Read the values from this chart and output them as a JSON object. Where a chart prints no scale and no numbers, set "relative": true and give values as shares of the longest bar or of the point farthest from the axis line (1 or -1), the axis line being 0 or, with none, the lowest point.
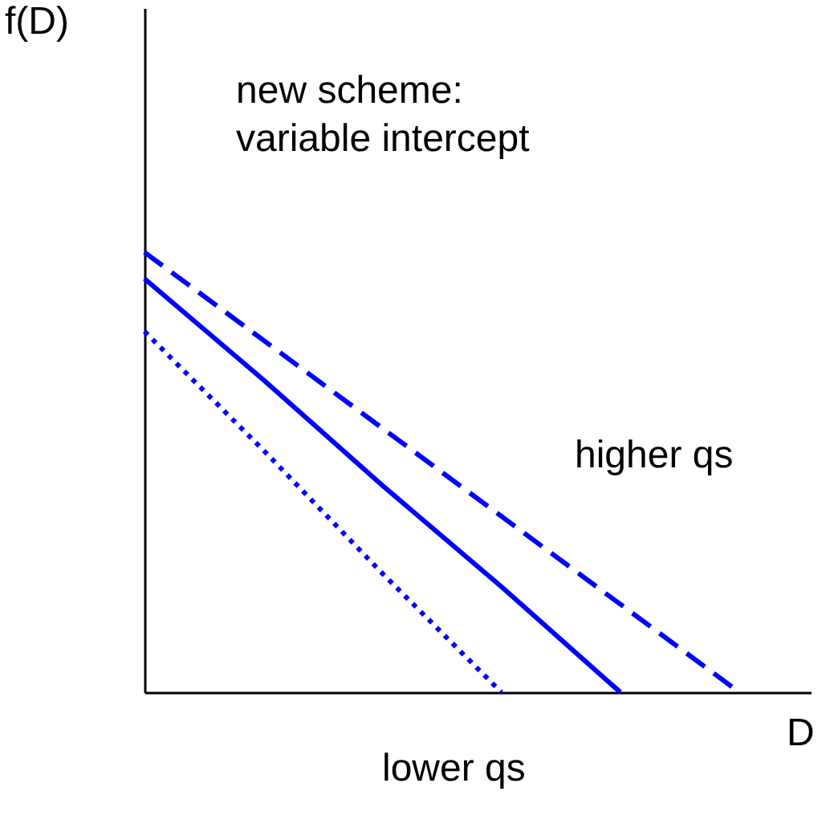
{
  "chart_data": {
    "type": "line",
    "relative": true,
    "xlabel": "D",
    "grid": false,
    "annotations": [
      "f(D)",
      "new scheme:\nvariable intercept",
      "higher qs",
      "lower qs"
    ],
    "categories": [
      null,
      null,
      null,
      null,
      null,
      null
    ],
    "series": [
      {
        "color": "#0000ff",
        "line_style": "solid",
        "values": [
          0.94,
          0.71,
          0.47,
          0.24,
          0,
          null
        ]
      },
      {
        "color": "#0000ff",
        "line_style": "dashed",
        "values": [
          1,
          0.8,
          0.6,
          0.4,
          0.2,
          0
        ]
      },
      {
        "color": "#0000ff",
        "line_style": "dotted",
        "values": [
          0.82,
          0.55,
          0.27,
          0,
          null,
          null
        ]
      }
    ]
  }
}
